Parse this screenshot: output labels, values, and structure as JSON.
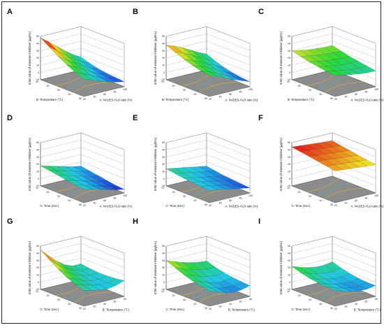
{
  "figure": {
    "background": "#ffffff",
    "floor_color": "#8c8c8c",
    "colors": {
      "low": "#1f2bd6",
      "mid_low": "#22c7e8",
      "mid": "#27d93a",
      "mid_high": "#f0e020",
      "high": "#e3211b"
    }
  },
  "chart_data": [
    {
      "panel": "A",
      "type": "surface",
      "zlabel": "IC50 value of elastase inhibition (µg/mL)",
      "xlabel": "A: NADES-H₂O ratio (%)",
      "ylabel": "B: Temperature (°C)",
      "xticks": [
        "20",
        "40",
        "60",
        "80",
        "100"
      ],
      "yticks": [
        "20",
        "30",
        "40",
        "50",
        "60"
      ],
      "zticks": [
        "-10",
        "0",
        "10",
        "20",
        "30",
        "40",
        "50"
      ],
      "zlim": [
        -10,
        50
      ],
      "grid": [
        [
          48,
          40,
          31,
          22,
          14,
          8
        ],
        [
          40,
          32,
          24,
          16,
          9,
          4
        ],
        [
          32,
          25,
          18,
          11,
          5,
          1
        ],
        [
          25,
          19,
          13,
          7,
          2,
          -1
        ],
        [
          19,
          14,
          9,
          4,
          0,
          -2
        ],
        [
          14,
          10,
          6,
          2,
          -1,
          -3
        ]
      ]
    },
    {
      "panel": "B",
      "type": "surface",
      "zlabel": "IC50 value of elastase inhibition (µg/mL)",
      "xlabel": "A: NADES-H₂O ratio (%)",
      "ylabel": "B: Temperature (°C)",
      "xticks": [
        "20",
        "40",
        "60",
        "80",
        "100"
      ],
      "yticks": [
        "20",
        "30",
        "40",
        "50",
        "60"
      ],
      "zticks": [
        "-10",
        "0",
        "10",
        "20",
        "30",
        "40",
        "50"
      ],
      "zlim": [
        -10,
        50
      ],
      "grid": [
        [
          38,
          34,
          29,
          23,
          17,
          12
        ],
        [
          33,
          29,
          24,
          18,
          12,
          7
        ],
        [
          28,
          24,
          19,
          13,
          8,
          3
        ],
        [
          24,
          20,
          15,
          10,
          4,
          0
        ],
        [
          21,
          17,
          12,
          7,
          2,
          -2
        ],
        [
          19,
          15,
          10,
          5,
          1,
          -3
        ]
      ]
    },
    {
      "panel": "C",
      "type": "surface",
      "zlabel": "IC50 value of elastase inhibition (µg/mL)",
      "xlabel": "A: NADES-H₂O ratio (%)",
      "ylabel": "B: Temperature (°C)",
      "xticks": [
        "20",
        "40",
        "60",
        "80",
        "100"
      ],
      "yticks": [
        "20",
        "30",
        "40",
        "50",
        "60"
      ],
      "zticks": [
        "-10",
        "0",
        "10",
        "20",
        "30",
        "40",
        "50"
      ],
      "zlim": [
        -10,
        50
      ],
      "grid": [
        [
          30,
          28,
          26,
          25,
          24,
          24
        ],
        [
          27,
          25,
          23,
          22,
          21,
          21
        ],
        [
          24,
          22,
          20,
          19,
          18,
          18
        ],
        [
          22,
          20,
          18,
          16,
          16,
          16
        ],
        [
          20,
          18,
          16,
          14,
          14,
          14
        ],
        [
          19,
          17,
          15,
          13,
          12,
          12
        ]
      ]
    },
    {
      "panel": "D",
      "type": "surface",
      "zlabel": "IC50 value of elastase inhibition (µg/mL)",
      "xlabel": "A: NADES-H₂O ratio (%)",
      "ylabel": "C: Time (min.)",
      "xticks": [
        "20",
        "40",
        "60",
        "80",
        "100"
      ],
      "yticks": [
        "10",
        "20",
        "30",
        "40",
        "50"
      ],
      "zticks": [
        "-10",
        "0",
        "10",
        "20",
        "30",
        "40",
        "50"
      ],
      "zlim": [
        -10,
        50
      ],
      "grid": [
        [
          18,
          15,
          12,
          9,
          6,
          4
        ],
        [
          16,
          13,
          10,
          7,
          4,
          2
        ],
        [
          14,
          11,
          8,
          5,
          2,
          0
        ],
        [
          12,
          9,
          6,
          3,
          0,
          -2
        ],
        [
          10,
          7,
          4,
          1,
          -2,
          -4
        ],
        [
          9,
          6,
          3,
          0,
          -3,
          -5
        ]
      ]
    },
    {
      "panel": "E",
      "type": "surface",
      "zlabel": "IC50 value of elastase inhibition (µg/mL)",
      "xlabel": "A: NADES-H₂O ratio (%)",
      "ylabel": "C: Time (min.)",
      "xticks": [
        "20",
        "40",
        "60",
        "80",
        "100"
      ],
      "yticks": [
        "10",
        "20",
        "30",
        "40",
        "50"
      ],
      "zticks": [
        "-10",
        "0",
        "10",
        "20",
        "30",
        "40",
        "50"
      ],
      "zlim": [
        -10,
        50
      ],
      "grid": [
        [
          14,
          12,
          10,
          8,
          6,
          4
        ],
        [
          12,
          10,
          8,
          6,
          4,
          2
        ],
        [
          10,
          8,
          6,
          4,
          2,
          0
        ],
        [
          9,
          7,
          5,
          3,
          1,
          -1
        ],
        [
          8,
          6,
          4,
          2,
          0,
          -2
        ],
        [
          7,
          5,
          3,
          1,
          -1,
          -3
        ]
      ]
    },
    {
      "panel": "F",
      "type": "surface",
      "zlabel": "IC50 value of elastase inhibition (µg/mL)",
      "xlabel": "A: NADES-H₂O ratio (%)",
      "ylabel": "C: Time (min.)",
      "xticks": [
        "20",
        "40",
        "60",
        "80",
        "100"
      ],
      "yticks": [
        "10",
        "20",
        "30",
        "40",
        "50"
      ],
      "zticks": [
        "-10",
        "0",
        "10",
        "20",
        "30",
        "40",
        "50"
      ],
      "zlim": [
        -10,
        50
      ],
      "grid": [
        [
          44,
          43,
          42,
          41,
          40,
          39
        ],
        [
          42,
          41,
          40,
          39,
          38,
          37
        ],
        [
          40,
          39,
          38,
          37,
          36,
          35
        ],
        [
          38,
          37,
          36,
          35,
          34,
          33
        ],
        [
          36,
          35,
          34,
          33,
          32,
          31
        ],
        [
          34,
          33,
          32,
          31,
          30,
          29
        ]
      ]
    },
    {
      "panel": "G",
      "type": "surface",
      "zlabel": "IC50 value of elastase inhibition (µg/mL)",
      "xlabel": "B: Temperature (°C)",
      "ylabel": "C: Time (min.)",
      "xticks": [
        "20",
        "30",
        "40",
        "50",
        "60"
      ],
      "yticks": [
        "10",
        "20",
        "30",
        "40",
        "50"
      ],
      "zticks": [
        "-10",
        "0",
        "10",
        "20",
        "30",
        "40",
        "50"
      ],
      "zlim": [
        -10,
        50
      ],
      "grid": [
        [
          45,
          34,
          24,
          16,
          12,
          12
        ],
        [
          36,
          27,
          19,
          13,
          10,
          10
        ],
        [
          28,
          21,
          15,
          10,
          8,
          9
        ],
        [
          21,
          16,
          11,
          8,
          7,
          9
        ],
        [
          16,
          12,
          9,
          7,
          7,
          10
        ],
        [
          12,
          9,
          7,
          6,
          8,
          12
        ]
      ]
    },
    {
      "panel": "H",
      "type": "surface",
      "zlabel": "IC50 value of elastase inhibition (µg/mL)",
      "xlabel": "B: Temperature (°C)",
      "ylabel": "C: Time (min.)",
      "xticks": [
        "20",
        "30",
        "40",
        "50",
        "60"
      ],
      "yticks": [
        "10",
        "20",
        "30",
        "40",
        "50"
      ],
      "zticks": [
        "-10",
        "0",
        "10",
        "20",
        "30",
        "40",
        "50"
      ],
      "zlim": [
        -10,
        50
      ],
      "grid": [
        [
          30,
          26,
          22,
          19,
          17,
          16
        ],
        [
          25,
          21,
          17,
          14,
          12,
          12
        ],
        [
          20,
          16,
          12,
          9,
          8,
          9
        ],
        [
          16,
          12,
          8,
          5,
          5,
          7
        ],
        [
          13,
          9,
          5,
          3,
          3,
          6
        ],
        [
          11,
          7,
          3,
          1,
          2,
          5
        ]
      ]
    },
    {
      "panel": "I",
      "type": "surface",
      "zlabel": "IC50 value of elastase inhibition (µg/mL)",
      "xlabel": "B: Temperature (°C)",
      "ylabel": "C: Time (min.)",
      "xticks": [
        "20",
        "30",
        "40",
        "50",
        "60"
      ],
      "yticks": [
        "10",
        "20",
        "30",
        "40",
        "50"
      ],
      "zticks": [
        "-10",
        "0",
        "10",
        "20",
        "30",
        "40",
        "50"
      ],
      "zlim": [
        -10,
        50
      ],
      "grid": [
        [
          22,
          18,
          15,
          13,
          13,
          15
        ],
        [
          18,
          14,
          11,
          9,
          9,
          11
        ],
        [
          15,
          11,
          8,
          6,
          6,
          8
        ],
        [
          13,
          9,
          6,
          4,
          4,
          6
        ],
        [
          12,
          8,
          5,
          3,
          3,
          5
        ],
        [
          12,
          8,
          5,
          3,
          3,
          5
        ]
      ]
    }
  ]
}
